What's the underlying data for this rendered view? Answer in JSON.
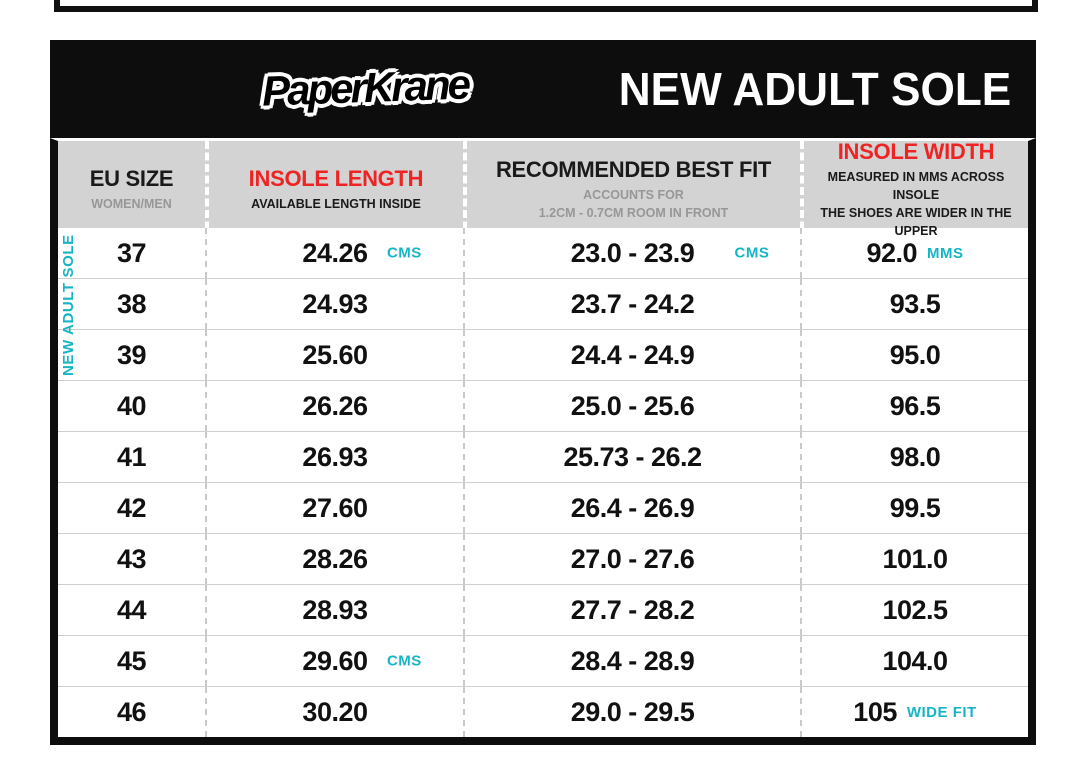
{
  "brand": {
    "logo_text": "PaperKrane"
  },
  "header": {
    "title": "NEW ADULT SOLE"
  },
  "table": {
    "side_label": "NEW ADULT SOLE"
  },
  "colors": {
    "accent_red": "#EE2424",
    "accent_teal": "#16B5C5",
    "header_row_bg": "#D3D3D3",
    "card_black": "#0D0D0D",
    "subtext_gray": "#979797"
  },
  "chart_data": {
    "type": "table",
    "title": "NEW ADULT SOLE",
    "columns": [
      {
        "title": "EU SIZE",
        "subtitle": "WOMEN/MEN"
      },
      {
        "title": "INSOLE LENGTH",
        "subtitle": "AVAILABLE LENGTH INSIDE"
      },
      {
        "title": "RECOMMENDED BEST FIT",
        "subtitle": "ACCOUNTS FOR\n1.2CM - 0.7CM ROOM IN FRONT"
      },
      {
        "title": "INSOLE WIDTH",
        "subtitle": "MEASURED IN MMS ACROSS INSOLE\nTHE SHOES ARE WIDER IN THE UPPER"
      }
    ],
    "rows": [
      {
        "eu_size": "37",
        "insole_length": "24.26",
        "insole_length_unit": "CMS",
        "best_fit": "23.0 - 23.9",
        "best_fit_unit": "CMS",
        "insole_width": "92.0",
        "insole_width_unit": "MMS"
      },
      {
        "eu_size": "38",
        "insole_length": "24.93",
        "best_fit": "23.7 - 24.2",
        "insole_width": "93.5"
      },
      {
        "eu_size": "39",
        "insole_length": "25.60",
        "best_fit": "24.4 - 24.9",
        "insole_width": "95.0"
      },
      {
        "eu_size": "40",
        "insole_length": "26.26",
        "best_fit": "25.0 - 25.6",
        "insole_width": "96.5"
      },
      {
        "eu_size": "41",
        "insole_length": "26.93",
        "best_fit": "25.73 - 26.2",
        "insole_width": "98.0"
      },
      {
        "eu_size": "42",
        "insole_length": "27.60",
        "best_fit": "26.4 - 26.9",
        "insole_width": "99.5"
      },
      {
        "eu_size": "43",
        "insole_length": "28.26",
        "best_fit": "27.0 - 27.6",
        "insole_width": "101.0"
      },
      {
        "eu_size": "44",
        "insole_length": "28.93",
        "best_fit": "27.7 - 28.2",
        "insole_width": "102.5"
      },
      {
        "eu_size": "45",
        "insole_length": "29.60",
        "insole_length_unit": "CMS",
        "best_fit": "28.4 - 28.9",
        "insole_width": "104.0"
      },
      {
        "eu_size": "46",
        "insole_length": "30.20",
        "best_fit": "29.0 - 29.5",
        "insole_width": "105",
        "insole_width_unit": "WIDE FIT"
      }
    ]
  }
}
